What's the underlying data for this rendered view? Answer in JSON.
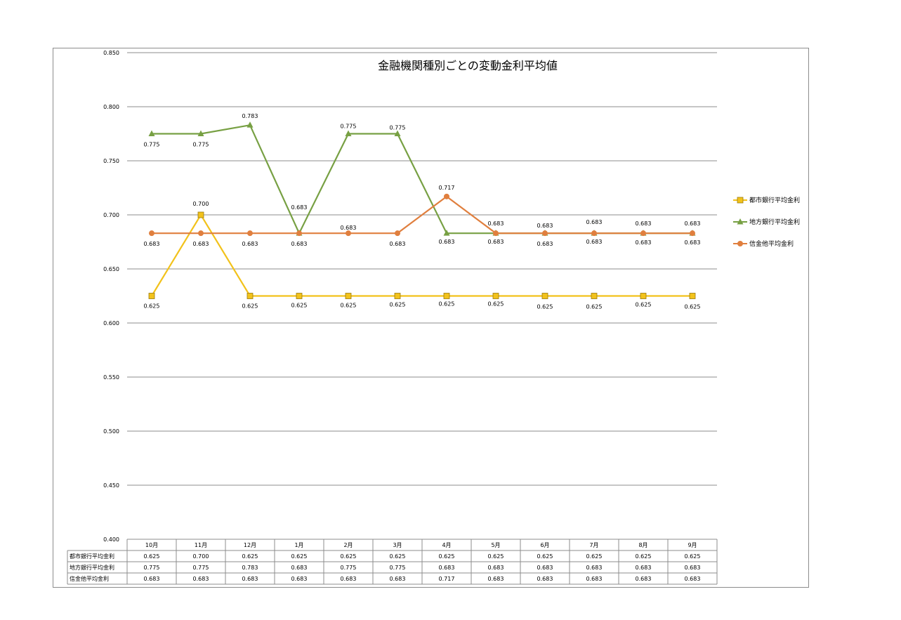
{
  "chart_data": {
    "type": "line",
    "title": "金融機関種別ごとの変動金利平均値",
    "categories": [
      "10月",
      "11月",
      "12月",
      "1月",
      "2月",
      "3月",
      "4月",
      "5月",
      "6月",
      "7月",
      "8月",
      "9月"
    ],
    "ylim": [
      0.4,
      0.85
    ],
    "yticks": [
      "0.850",
      "0.800",
      "0.750",
      "0.700",
      "0.650",
      "0.600",
      "0.550",
      "0.500",
      "0.450",
      "0.400"
    ],
    "grid": true,
    "legend": "right",
    "series": [
      {
        "name": "都市銀行平均金利",
        "color": "#f2c21b",
        "marker": "square",
        "values": [
          0.625,
          0.7,
          0.625,
          0.625,
          0.625,
          0.625,
          0.625,
          0.625,
          0.625,
          0.625,
          0.625,
          0.625
        ],
        "labels": [
          "0.625",
          "0.700",
          "0.625",
          "0.625",
          "0.625",
          "0.625",
          "0.625",
          "0.625",
          "0.625",
          "0.625",
          "0.625",
          "0.625"
        ]
      },
      {
        "name": "地方銀行平均金利",
        "color": "#77a043",
        "marker": "triangle",
        "values": [
          0.775,
          0.775,
          0.783,
          0.683,
          0.775,
          0.775,
          0.683,
          0.683,
          0.683,
          0.683,
          0.683,
          0.683
        ],
        "labels": [
          "0.775",
          "0.775",
          "0.783",
          "0.683",
          "0.775",
          "0.775",
          "0.683",
          "0.683",
          "0.683",
          "0.683",
          "0.683",
          "0.683"
        ]
      },
      {
        "name": "信金他平均金利",
        "color": "#e07f3e",
        "marker": "circle",
        "values": [
          0.683,
          0.683,
          0.683,
          0.683,
          0.683,
          0.683,
          0.717,
          0.683,
          0.683,
          0.683,
          0.683,
          0.683
        ],
        "labels": [
          "0.683",
          "0.683",
          "0.683",
          "0.683",
          "0.683",
          "0.683",
          "0.717",
          "0.683",
          "0.683",
          "0.683",
          "0.683",
          "0.683"
        ]
      }
    ]
  }
}
